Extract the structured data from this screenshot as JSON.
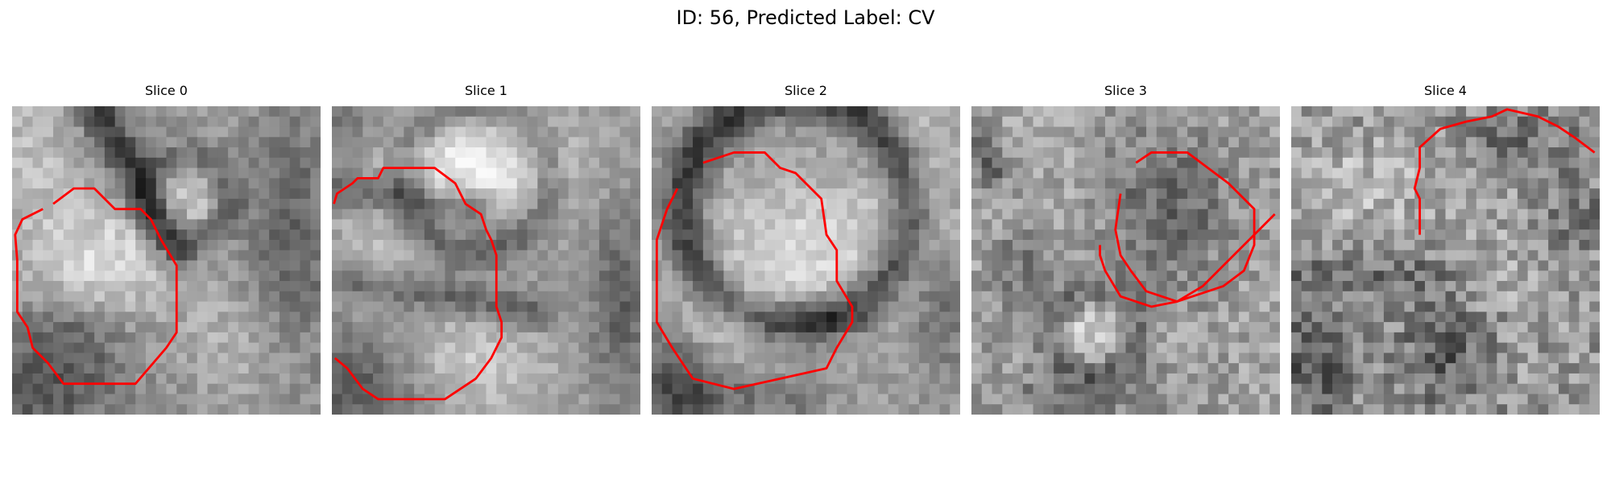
{
  "figure": {
    "title": "ID: 56, Predicted Label: CV"
  },
  "colors": {
    "contour": "#ff0000"
  },
  "slices": [
    {
      "title": "Slice 0"
    },
    {
      "title": "Slice 1"
    },
    {
      "title": "Slice 2"
    },
    {
      "title": "Slice 3"
    },
    {
      "title": "Slice 4"
    }
  ]
}
